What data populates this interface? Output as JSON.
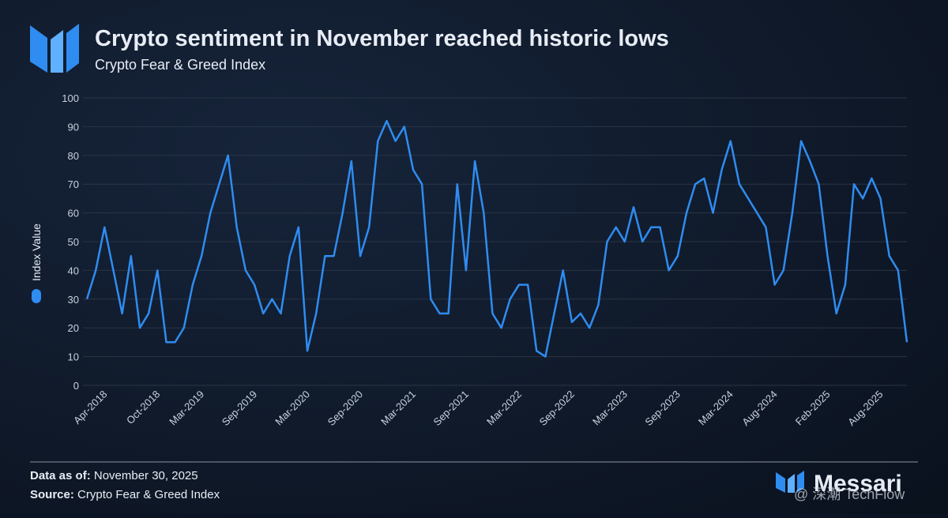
{
  "chart_data": {
    "type": "line",
    "title": "Crypto sentiment in November reached historic lows",
    "subtitle": "Crypto Fear & Greed Index",
    "y_label": "Index Value",
    "categories": [
      null,
      null,
      "Apr-2018",
      null,
      null,
      null,
      null,
      null,
      "Oct-2018",
      null,
      null,
      null,
      null,
      "Mar-2019",
      null,
      null,
      null,
      null,
      null,
      "Sep-2019",
      null,
      null,
      null,
      null,
      null,
      "Mar-2020",
      null,
      null,
      null,
      null,
      null,
      "Sep-2020",
      null,
      null,
      null,
      null,
      null,
      "Mar-2021",
      null,
      null,
      null,
      null,
      null,
      "Sep-2021",
      null,
      null,
      null,
      null,
      null,
      "Mar-2022",
      null,
      null,
      null,
      null,
      null,
      "Sep-2022",
      null,
      null,
      null,
      null,
      null,
      "Mar-2023",
      null,
      null,
      null,
      null,
      null,
      "Sep-2023",
      null,
      null,
      null,
      null,
      null,
      "Mar-2024",
      null,
      null,
      null,
      null,
      "Aug-2024",
      null,
      null,
      null,
      null,
      null,
      "Feb-2025",
      null,
      null,
      null,
      null,
      null,
      "Aug-2025",
      null,
      null,
      null
    ],
    "series": [
      {
        "name": "Index Value",
        "color": "#2f8cf0",
        "values": [
          30,
          40,
          55,
          40,
          25,
          45,
          20,
          25,
          40,
          15,
          15,
          20,
          35,
          45,
          60,
          70,
          80,
          55,
          40,
          35,
          25,
          30,
          25,
          45,
          55,
          12,
          25,
          45,
          45,
          60,
          78,
          45,
          55,
          85,
          92,
          85,
          90,
          75,
          70,
          30,
          25,
          25,
          70,
          40,
          78,
          60,
          25,
          20,
          30,
          35,
          35,
          12,
          10,
          25,
          40,
          22,
          25,
          20,
          28,
          50,
          55,
          50,
          62,
          50,
          55,
          55,
          40,
          45,
          60,
          70,
          72,
          60,
          75,
          85,
          70,
          65,
          60,
          55,
          35,
          40,
          60,
          85,
          78,
          70,
          45,
          25,
          35,
          70,
          65,
          72,
          65,
          45,
          40,
          15
        ]
      }
    ],
    "ylim": [
      0,
      100
    ],
    "yticks": [
      0,
      10,
      20,
      30,
      40,
      50,
      60,
      70,
      80,
      90,
      100
    ],
    "grid": true
  },
  "footer": {
    "data_as_of_label": "Data as of:",
    "data_as_of": "November 30, 2025",
    "source_label": "Source:",
    "source": "Crypto Fear & Greed Index",
    "brand": "Messari",
    "watermark": "@ 深潮 TechFlow"
  }
}
